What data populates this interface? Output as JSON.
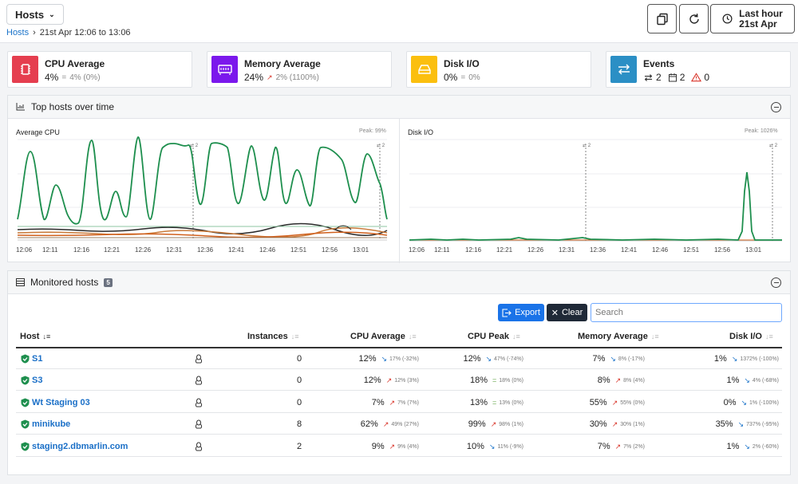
{
  "header": {
    "hosts_label": "Hosts",
    "breadcrumb": {
      "link": "Hosts",
      "separator": "›",
      "range": "21st Apr 12:06 to 13:06"
    },
    "range_button": {
      "line1": "Last hour",
      "line2": "21st Apr"
    }
  },
  "summary_cards": [
    {
      "title": "CPU Average",
      "value": "4%",
      "trend_symbol": "=",
      "trend_text": "4% (0%)",
      "color": "#e53e4f",
      "icon": "cpu-chip-icon"
    },
    {
      "title": "Memory Average",
      "value": "24%",
      "trend_symbol": "↗",
      "trend_text": "2% (1100%)",
      "color": "#7b18ec",
      "icon": "memory-icon"
    },
    {
      "title": "Disk I/O",
      "value": "0%",
      "trend_symbol": "=",
      "trend_text": "0%",
      "color": "#fbbf0f",
      "icon": "disk-icon"
    },
    {
      "title": "Events",
      "color": "#2b8fc5",
      "icon": "events-icon",
      "changes": "2",
      "deploys": "2",
      "alerts": "0"
    }
  ],
  "top_hosts": {
    "title": "Top hosts over time",
    "cpu": {
      "title": "Average CPU",
      "peak": "Peak: 99%",
      "marker_label": "2"
    },
    "disk": {
      "title": "Disk I/O",
      "peak": "Peak: 1026%",
      "marker_label": "2"
    },
    "ticks": [
      "12:06",
      "12:11",
      "12:16",
      "12:21",
      "12:26",
      "12:31",
      "12:36",
      "12:41",
      "12:46",
      "12:51",
      "12:56",
      "13:01"
    ]
  },
  "chart_data": [
    {
      "type": "line",
      "title": "Average CPU",
      "x": [
        "12:06",
        "12:11",
        "12:16",
        "12:21",
        "12:26",
        "12:31",
        "12:36",
        "12:41",
        "12:46",
        "12:51",
        "12:56",
        "13:01"
      ],
      "series": [
        {
          "values": [
            60,
            10,
            85,
            20,
            75,
            15,
            90,
            60,
            85,
            65,
            70,
            45
          ]
        }
      ]
    },
    {
      "type": "line",
      "title": "Disk I/O",
      "x": [
        "12:06",
        "12:11",
        "12:16",
        "12:21",
        "12:26",
        "12:31",
        "12:36",
        "12:41",
        "12:46",
        "12:51",
        "12:56",
        "13:01"
      ],
      "series": [
        {
          "values": [
            1,
            1,
            1,
            1,
            2,
            1,
            3,
            1,
            1,
            1,
            1,
            880
          ]
        }
      ]
    }
  ],
  "monitored": {
    "title": "Monitored hosts",
    "count": "5",
    "export_label": "Export",
    "clear_label": "Clear",
    "search_placeholder": "Search",
    "columns": [
      "Host",
      "Instances",
      "CPU Average",
      "CPU Peak",
      "Memory Average",
      "Disk I/O"
    ],
    "rows": [
      {
        "host": "S1",
        "instances": "0",
        "cpu_avg": "12%",
        "cpu_avg_dir": "down",
        "cpu_avg_t": "17% (-32%)",
        "cpu_peak": "12%",
        "cpu_peak_dir": "down",
        "cpu_peak_t": "47% (-74%)",
        "mem": "7%",
        "mem_dir": "down",
        "mem_t": "8% (-17%)",
        "disk": "1%",
        "disk_dir": "down",
        "disk_t": "1372% (-100%)"
      },
      {
        "host": "S3",
        "instances": "0",
        "cpu_avg": "12%",
        "cpu_avg_dir": "up",
        "cpu_avg_t": "12% (3%)",
        "cpu_peak": "18%",
        "cpu_peak_dir": "eq",
        "cpu_peak_t": "18% (0%)",
        "mem": "8%",
        "mem_dir": "up",
        "mem_t": "8% (4%)",
        "disk": "1%",
        "disk_dir": "down",
        "disk_t": "4% (-68%)"
      },
      {
        "host": "Wt Staging 03",
        "instances": "0",
        "cpu_avg": "7%",
        "cpu_avg_dir": "up",
        "cpu_avg_t": "7% (7%)",
        "cpu_peak": "13%",
        "cpu_peak_dir": "eq",
        "cpu_peak_t": "13% (0%)",
        "mem": "55%",
        "mem_dir": "up",
        "mem_t": "55% (0%)",
        "disk": "0%",
        "disk_dir": "down",
        "disk_t": "1% (-100%)"
      },
      {
        "host": "minikube",
        "instances": "8",
        "cpu_avg": "62%",
        "cpu_avg_dir": "up",
        "cpu_avg_t": "49% (27%)",
        "cpu_peak": "99%",
        "cpu_peak_dir": "up",
        "cpu_peak_t": "98% (1%)",
        "mem": "30%",
        "mem_dir": "up",
        "mem_t": "30% (1%)",
        "disk": "35%",
        "disk_dir": "down",
        "disk_t": "737% (-95%)"
      },
      {
        "host": "staging2.dbmarlin.com",
        "instances": "2",
        "cpu_avg": "9%",
        "cpu_avg_dir": "up",
        "cpu_avg_t": "9% (4%)",
        "cpu_peak": "10%",
        "cpu_peak_dir": "down",
        "cpu_peak_t": "11% (-9%)",
        "mem": "7%",
        "mem_dir": "up",
        "mem_t": "7% (2%)",
        "disk": "1%",
        "disk_dir": "down",
        "disk_t": "2% (-60%)"
      }
    ]
  }
}
